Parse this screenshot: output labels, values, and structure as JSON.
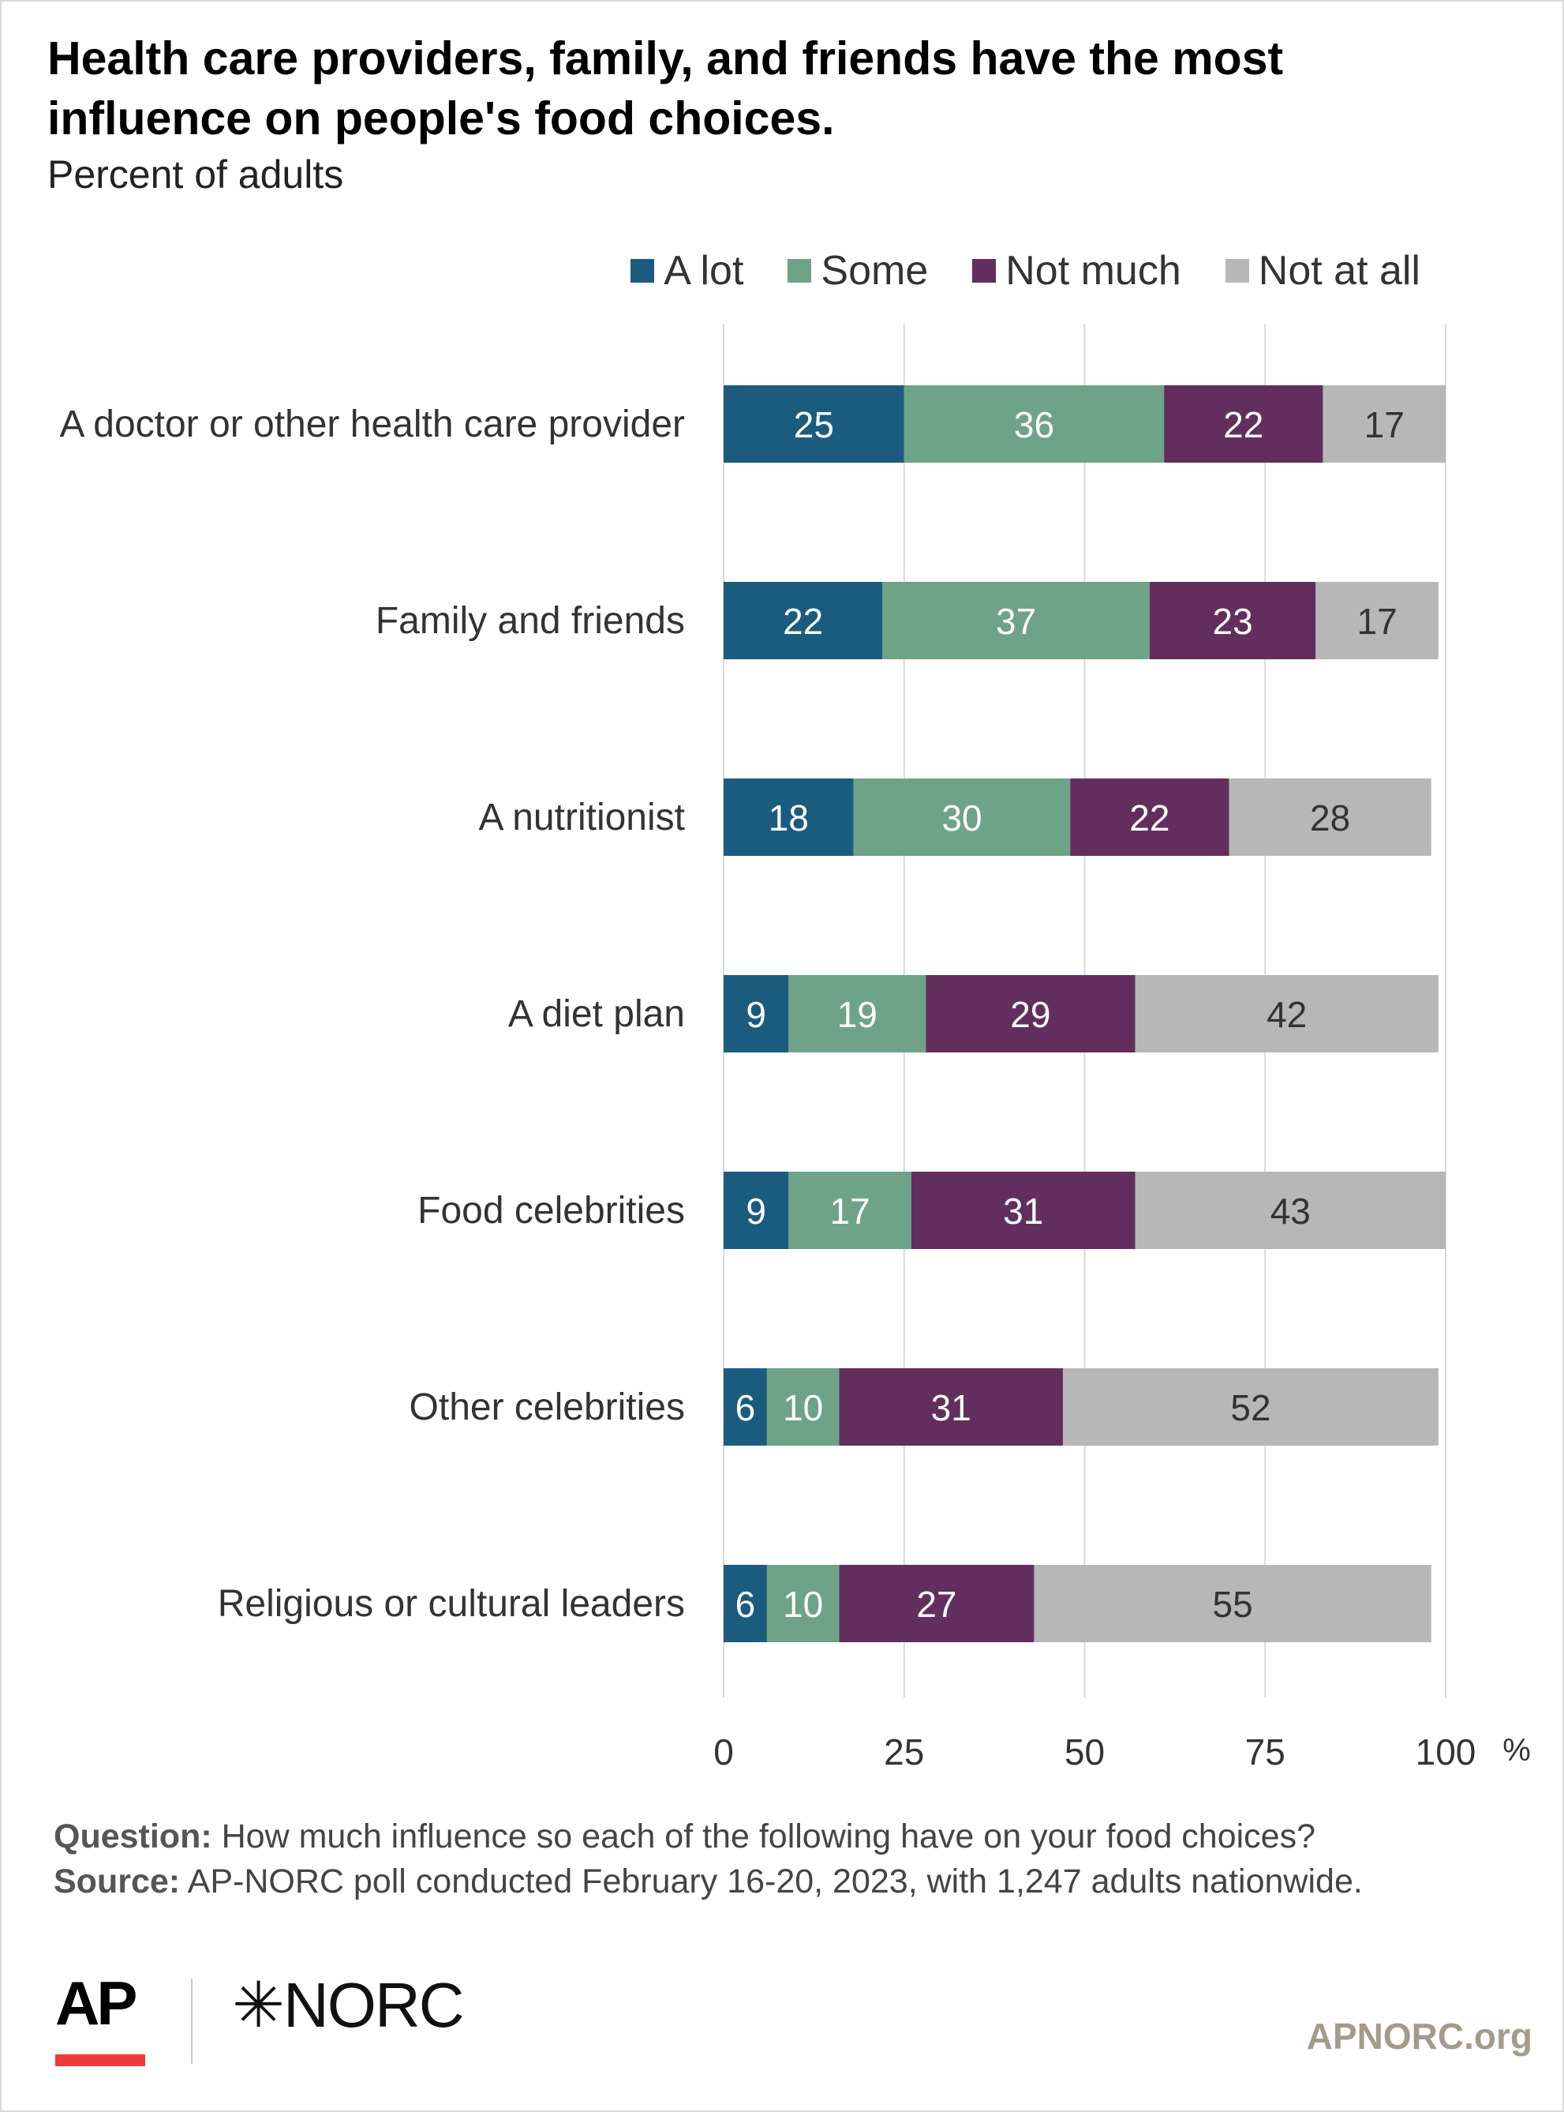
{
  "title": "Health care providers, family, and friends have the most influence on people's food choices.",
  "subtitle": "Percent of adults",
  "footer": {
    "question_label": "Question:",
    "question_text": " How much influence so each of the following have on your food choices?",
    "source_label": "Source:",
    "source_text": " AP-NORC poll conducted February 16-20, 2023, with 1,247 adults nationwide."
  },
  "logos": {
    "ap": "AP",
    "norc": "NORC",
    "norc_mark": "✳"
  },
  "site": "APNORC.org",
  "colors": {
    "a_lot": "#1b5c7e",
    "some": "#6ea387",
    "not_much": "#622e5e",
    "not_at_all": "#b7b7b7",
    "grid": "#d9d9d9",
    "accent_red": "#ef3a3a"
  },
  "chart_data": {
    "type": "bar",
    "orientation": "horizontal",
    "stacked": true,
    "title": "Health care providers, family, and friends have the most influence on people's food choices.",
    "subtitle": "Percent of adults",
    "categories": [
      "A doctor or other health care provider",
      "Family and friends",
      "A nutritionist",
      "A diet plan",
      "Food celebrities",
      "Other celebrities",
      "Religious or cultural leaders"
    ],
    "series": [
      {
        "name": "A lot",
        "color": "#1b5c7e",
        "values": [
          25,
          22,
          18,
          9,
          9,
          6,
          6
        ]
      },
      {
        "name": "Some",
        "color": "#6ea387",
        "values": [
          36,
          37,
          30,
          19,
          17,
          10,
          10
        ]
      },
      {
        "name": "Not much",
        "color": "#622e5e",
        "values": [
          22,
          23,
          22,
          29,
          31,
          31,
          27
        ]
      },
      {
        "name": "Not at all",
        "color": "#b7b7b7",
        "values": [
          17,
          17,
          28,
          42,
          43,
          52,
          55
        ]
      }
    ],
    "xlim": [
      0,
      100
    ],
    "xticks": [
      0,
      25,
      50,
      75,
      100
    ],
    "xtick_labels": [
      "0",
      "25",
      "50",
      "75",
      "100"
    ],
    "x_unit": "%",
    "grid": true,
    "legend_position": "top-right"
  }
}
